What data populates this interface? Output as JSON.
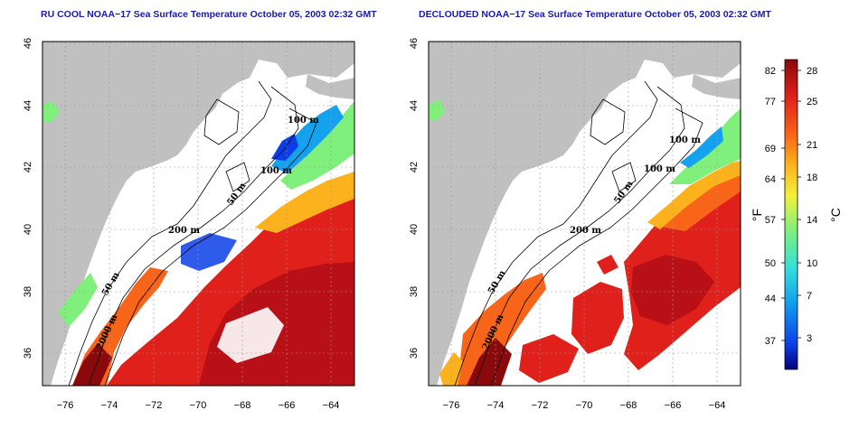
{
  "panels": [
    {
      "title": "RU COOL NOAA−17 Sea Surface Temperature October 05, 2003 02:32 GMT"
    },
    {
      "title": "DECLOUDED NOAA−17 Sea Surface Temperature October 05, 2003 02:32 GMT"
    }
  ],
  "axes": {
    "lon_ticks": [
      "−76",
      "−74",
      "−72",
      "−70",
      "−68",
      "−66",
      "−64"
    ],
    "lat_ticks": [
      "46",
      "44",
      "42",
      "40",
      "38",
      "36"
    ]
  },
  "contours": {
    "left": [
      "100 m",
      "100 m",
      "50 m",
      "200 m",
      "50 m",
      "2000 m"
    ],
    "right": [
      "100 m",
      "100 m",
      "50 m",
      "200 m",
      "50 m",
      "2000 m"
    ]
  },
  "colorbar": {
    "f_label": "°F",
    "c_label": "°C",
    "f_ticks": [
      "82",
      "77",
      "69",
      "64",
      "57",
      "50",
      "44",
      "37"
    ],
    "c_ticks": [
      "28",
      "25",
      "21",
      "18",
      "14",
      "10",
      "7",
      "3"
    ]
  },
  "colors": {
    "title": "#1a1aa6",
    "land": "#c0c0c0",
    "cloud": "#ffffff",
    "scale": [
      "#06007a",
      "#0a3ee6",
      "#14a2ef",
      "#36e0d8",
      "#7ff07b",
      "#f2f23a",
      "#fcb21c",
      "#f86418",
      "#e0201a",
      "#8a0a0c"
    ]
  }
}
